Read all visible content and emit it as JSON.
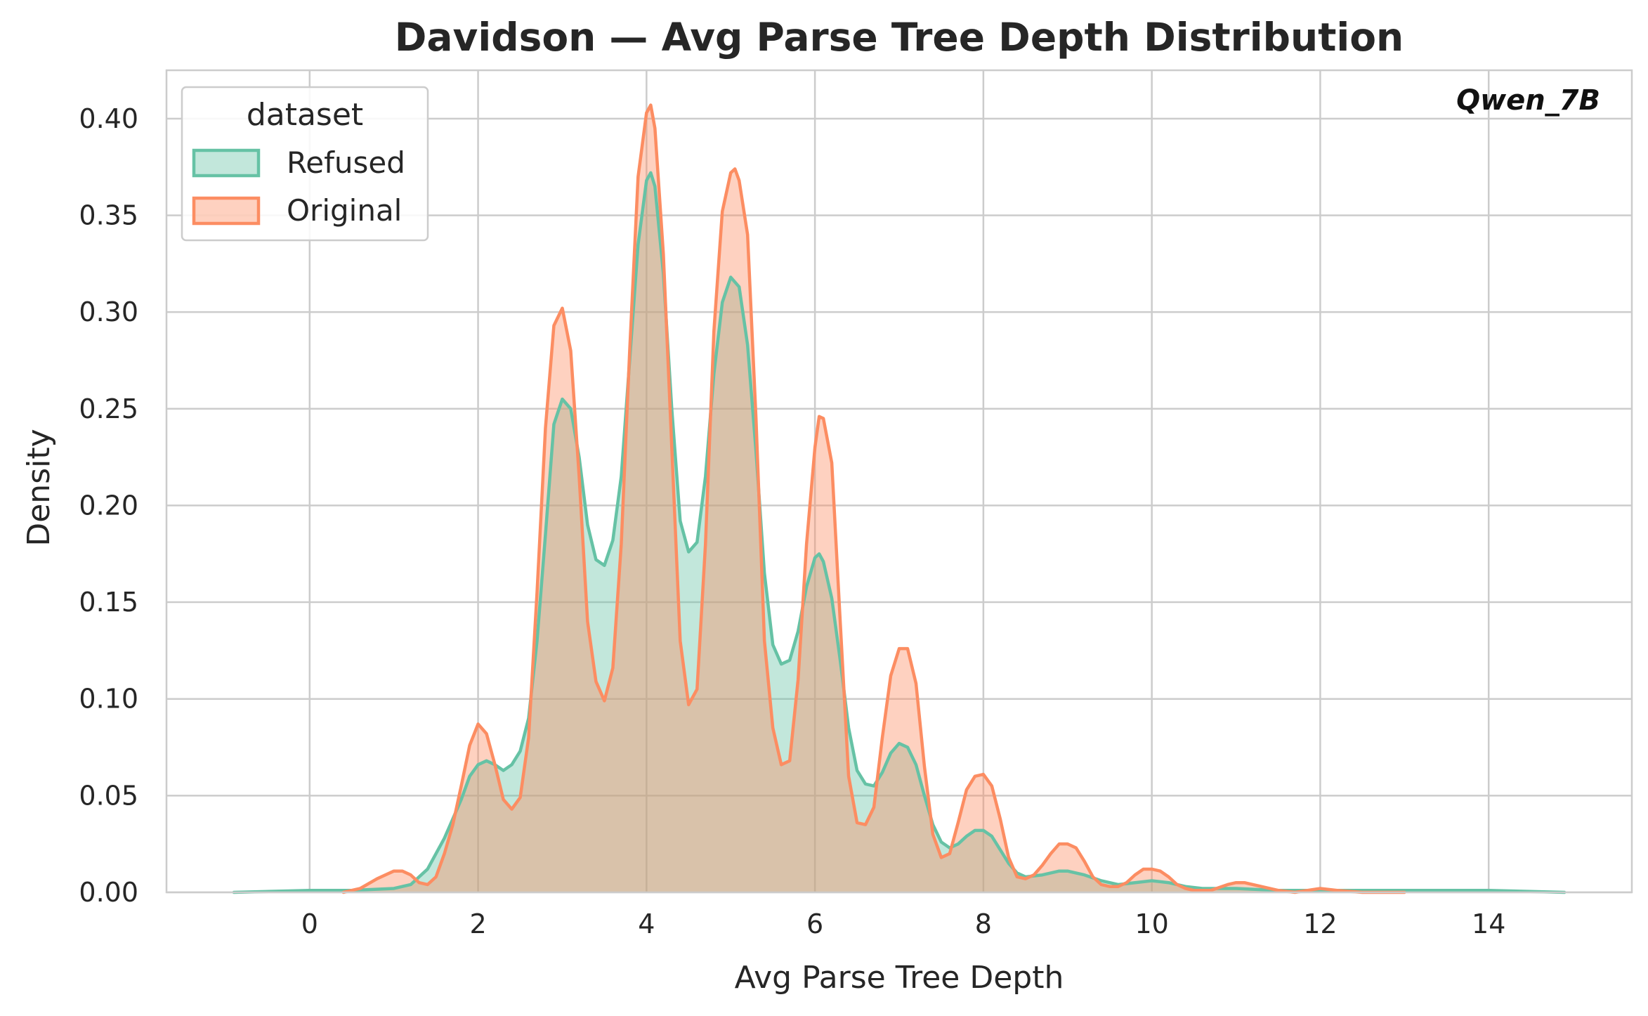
{
  "chart_data": {
    "type": "area",
    "title": "Davidson — Avg Parse Tree Depth Distribution",
    "xlabel": "Avg Parse Tree Depth",
    "ylabel": "Density",
    "annotation": "Qwen_7B",
    "xlim": [
      -1.7,
      15.7
    ],
    "ylim": [
      0,
      0.425
    ],
    "xticks": [
      0,
      2,
      4,
      6,
      8,
      10,
      12,
      14
    ],
    "yticks": [
      0.0,
      0.05,
      0.1,
      0.15,
      0.2,
      0.25,
      0.3,
      0.35,
      0.4
    ],
    "ytick_labels": [
      "0.00",
      "0.05",
      "0.10",
      "0.15",
      "0.20",
      "0.25",
      "0.30",
      "0.35",
      "0.40"
    ],
    "grid": true,
    "legend": {
      "title": "dataset",
      "placement": "top-left"
    },
    "series": [
      {
        "name": "Refused",
        "color": "#66c2a5",
        "points": [
          [
            -0.9,
            0.0
          ],
          [
            0.0,
            0.001
          ],
          [
            0.5,
            0.001
          ],
          [
            1.0,
            0.002
          ],
          [
            1.2,
            0.004
          ],
          [
            1.4,
            0.012
          ],
          [
            1.6,
            0.028
          ],
          [
            1.8,
            0.048
          ],
          [
            1.9,
            0.06
          ],
          [
            2.0,
            0.066
          ],
          [
            2.1,
            0.068
          ],
          [
            2.2,
            0.066
          ],
          [
            2.3,
            0.063
          ],
          [
            2.4,
            0.066
          ],
          [
            2.5,
            0.073
          ],
          [
            2.6,
            0.09
          ],
          [
            2.7,
            0.13
          ],
          [
            2.8,
            0.185
          ],
          [
            2.9,
            0.242
          ],
          [
            3.0,
            0.255
          ],
          [
            3.1,
            0.25
          ],
          [
            3.2,
            0.225
          ],
          [
            3.3,
            0.19
          ],
          [
            3.4,
            0.172
          ],
          [
            3.5,
            0.169
          ],
          [
            3.6,
            0.182
          ],
          [
            3.7,
            0.215
          ],
          [
            3.8,
            0.275
          ],
          [
            3.9,
            0.335
          ],
          [
            4.0,
            0.368
          ],
          [
            4.05,
            0.372
          ],
          [
            4.1,
            0.365
          ],
          [
            4.2,
            0.32
          ],
          [
            4.3,
            0.25
          ],
          [
            4.4,
            0.192
          ],
          [
            4.5,
            0.176
          ],
          [
            4.6,
            0.181
          ],
          [
            4.7,
            0.215
          ],
          [
            4.8,
            0.268
          ],
          [
            4.9,
            0.305
          ],
          [
            5.0,
            0.318
          ],
          [
            5.1,
            0.313
          ],
          [
            5.2,
            0.283
          ],
          [
            5.3,
            0.228
          ],
          [
            5.4,
            0.165
          ],
          [
            5.5,
            0.128
          ],
          [
            5.6,
            0.118
          ],
          [
            5.7,
            0.12
          ],
          [
            5.8,
            0.135
          ],
          [
            5.9,
            0.158
          ],
          [
            6.0,
            0.173
          ],
          [
            6.05,
            0.175
          ],
          [
            6.1,
            0.171
          ],
          [
            6.2,
            0.152
          ],
          [
            6.3,
            0.12
          ],
          [
            6.4,
            0.085
          ],
          [
            6.5,
            0.063
          ],
          [
            6.6,
            0.056
          ],
          [
            6.7,
            0.055
          ],
          [
            6.8,
            0.062
          ],
          [
            6.9,
            0.072
          ],
          [
            7.0,
            0.077
          ],
          [
            7.1,
            0.075
          ],
          [
            7.2,
            0.066
          ],
          [
            7.3,
            0.05
          ],
          [
            7.4,
            0.035
          ],
          [
            7.5,
            0.026
          ],
          [
            7.6,
            0.023
          ],
          [
            7.7,
            0.025
          ],
          [
            7.8,
            0.029
          ],
          [
            7.9,
            0.032
          ],
          [
            8.0,
            0.032
          ],
          [
            8.1,
            0.029
          ],
          [
            8.2,
            0.022
          ],
          [
            8.3,
            0.015
          ],
          [
            8.4,
            0.01
          ],
          [
            8.5,
            0.008
          ],
          [
            8.7,
            0.009
          ],
          [
            8.9,
            0.011
          ],
          [
            9.0,
            0.011
          ],
          [
            9.2,
            0.009
          ],
          [
            9.4,
            0.006
          ],
          [
            9.6,
            0.004
          ],
          [
            9.8,
            0.005
          ],
          [
            10.0,
            0.006
          ],
          [
            10.2,
            0.005
          ],
          [
            10.4,
            0.003
          ],
          [
            10.6,
            0.002
          ],
          [
            11.0,
            0.002
          ],
          [
            11.5,
            0.001
          ],
          [
            12.0,
            0.001
          ],
          [
            13.0,
            0.001
          ],
          [
            14.0,
            0.001
          ],
          [
            14.9,
            0.0
          ]
        ]
      },
      {
        "name": "Original",
        "color": "#fc8d62",
        "points": [
          [
            0.4,
            0.0
          ],
          [
            0.6,
            0.002
          ],
          [
            0.8,
            0.007
          ],
          [
            1.0,
            0.011
          ],
          [
            1.1,
            0.011
          ],
          [
            1.2,
            0.009
          ],
          [
            1.3,
            0.005
          ],
          [
            1.4,
            0.004
          ],
          [
            1.5,
            0.008
          ],
          [
            1.6,
            0.02
          ],
          [
            1.7,
            0.035
          ],
          [
            1.8,
            0.055
          ],
          [
            1.9,
            0.076
          ],
          [
            2.0,
            0.087
          ],
          [
            2.1,
            0.082
          ],
          [
            2.2,
            0.066
          ],
          [
            2.3,
            0.048
          ],
          [
            2.4,
            0.043
          ],
          [
            2.5,
            0.049
          ],
          [
            2.6,
            0.08
          ],
          [
            2.7,
            0.155
          ],
          [
            2.8,
            0.24
          ],
          [
            2.9,
            0.293
          ],
          [
            3.0,
            0.302
          ],
          [
            3.1,
            0.28
          ],
          [
            3.2,
            0.215
          ],
          [
            3.3,
            0.14
          ],
          [
            3.4,
            0.109
          ],
          [
            3.5,
            0.099
          ],
          [
            3.6,
            0.116
          ],
          [
            3.7,
            0.18
          ],
          [
            3.8,
            0.28
          ],
          [
            3.9,
            0.37
          ],
          [
            4.0,
            0.403
          ],
          [
            4.05,
            0.407
          ],
          [
            4.1,
            0.395
          ],
          [
            4.2,
            0.33
          ],
          [
            4.3,
            0.23
          ],
          [
            4.4,
            0.13
          ],
          [
            4.5,
            0.097
          ],
          [
            4.6,
            0.105
          ],
          [
            4.7,
            0.18
          ],
          [
            4.8,
            0.29
          ],
          [
            4.9,
            0.352
          ],
          [
            5.0,
            0.372
          ],
          [
            5.05,
            0.374
          ],
          [
            5.1,
            0.368
          ],
          [
            5.2,
            0.34
          ],
          [
            5.3,
            0.245
          ],
          [
            5.4,
            0.13
          ],
          [
            5.5,
            0.085
          ],
          [
            5.6,
            0.066
          ],
          [
            5.7,
            0.068
          ],
          [
            5.8,
            0.11
          ],
          [
            5.9,
            0.18
          ],
          [
            6.0,
            0.23
          ],
          [
            6.05,
            0.246
          ],
          [
            6.1,
            0.245
          ],
          [
            6.2,
            0.222
          ],
          [
            6.3,
            0.14
          ],
          [
            6.4,
            0.06
          ],
          [
            6.5,
            0.036
          ],
          [
            6.6,
            0.035
          ],
          [
            6.7,
            0.044
          ],
          [
            6.8,
            0.08
          ],
          [
            6.9,
            0.112
          ],
          [
            7.0,
            0.126
          ],
          [
            7.1,
            0.126
          ],
          [
            7.2,
            0.108
          ],
          [
            7.3,
            0.065
          ],
          [
            7.4,
            0.03
          ],
          [
            7.5,
            0.018
          ],
          [
            7.6,
            0.02
          ],
          [
            7.7,
            0.036
          ],
          [
            7.8,
            0.053
          ],
          [
            7.9,
            0.06
          ],
          [
            8.0,
            0.061
          ],
          [
            8.1,
            0.055
          ],
          [
            8.2,
            0.038
          ],
          [
            8.3,
            0.018
          ],
          [
            8.4,
            0.008
          ],
          [
            8.5,
            0.007
          ],
          [
            8.6,
            0.009
          ],
          [
            8.7,
            0.014
          ],
          [
            8.8,
            0.02
          ],
          [
            8.9,
            0.025
          ],
          [
            9.0,
            0.025
          ],
          [
            9.1,
            0.023
          ],
          [
            9.2,
            0.016
          ],
          [
            9.3,
            0.008
          ],
          [
            9.4,
            0.004
          ],
          [
            9.5,
            0.003
          ],
          [
            9.6,
            0.003
          ],
          [
            9.7,
            0.005
          ],
          [
            9.8,
            0.009
          ],
          [
            9.9,
            0.012
          ],
          [
            10.0,
            0.012
          ],
          [
            10.1,
            0.011
          ],
          [
            10.2,
            0.008
          ],
          [
            10.3,
            0.004
          ],
          [
            10.4,
            0.002
          ],
          [
            10.5,
            0.001
          ],
          [
            10.7,
            0.001
          ],
          [
            10.9,
            0.004
          ],
          [
            11.0,
            0.005
          ],
          [
            11.1,
            0.005
          ],
          [
            11.3,
            0.003
          ],
          [
            11.5,
            0.001
          ],
          [
            11.7,
            0.0
          ],
          [
            12.0,
            0.002
          ],
          [
            12.2,
            0.001
          ],
          [
            12.5,
            0.0
          ],
          [
            13.0,
            0.0
          ]
        ]
      }
    ]
  }
}
